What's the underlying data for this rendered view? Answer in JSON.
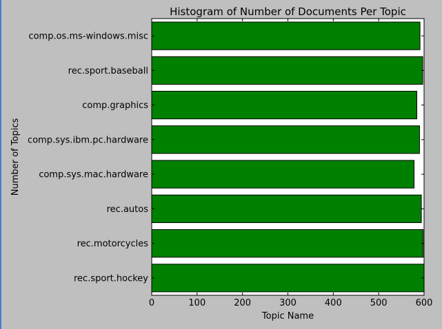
{
  "chart_data": {
    "type": "bar",
    "orientation": "horizontal",
    "title": "Histogram of Number of Documents Per Topic",
    "xlabel": "Topic Name",
    "ylabel": "Number of Topics",
    "xlim": [
      0,
      600
    ],
    "xticks": [
      "0",
      "100",
      "200",
      "300",
      "400",
      "500",
      "600"
    ],
    "grid": false,
    "legend": "none",
    "categories": [
      "comp.os.ms-windows.misc",
      "rec.sport.baseball",
      "comp.graphics",
      "comp.sys.ibm.pc.hardware",
      "comp.sys.mac.hardware",
      "rec.autos",
      "rec.motorcycles",
      "rec.sport.hockey"
    ],
    "values": [
      591,
      597,
      584,
      590,
      578,
      594,
      598,
      600
    ],
    "bar_color": "#008000",
    "background_color": "#bfbfbf",
    "plot_background_color": "#ffffff"
  }
}
